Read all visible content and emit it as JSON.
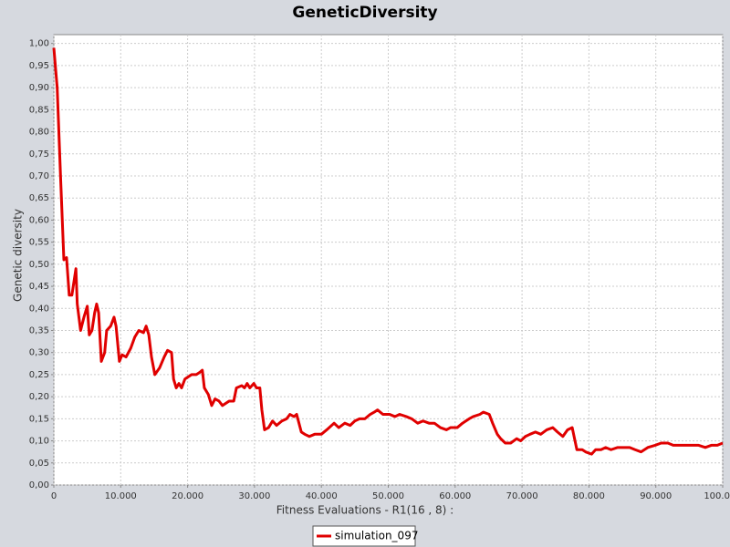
{
  "chart_data": {
    "type": "line",
    "title": "GeneticDiversity",
    "xlabel": "Fitness Evaluations - R1(16 , 8) :",
    "ylabel": "Genetic diversity",
    "x": [
      0,
      500,
      1000,
      1500,
      1900,
      2300,
      2700,
      3300,
      3500,
      4000,
      4500,
      5000,
      5300,
      5700,
      6100,
      6400,
      6700,
      7100,
      7600,
      7900,
      8500,
      9000,
      9300,
      9800,
      10200,
      10800,
      11500,
      12100,
      12700,
      13400,
      13800,
      14200,
      14600,
      15100,
      15800,
      16500,
      17000,
      17600,
      17900,
      18300,
      18700,
      19100,
      19600,
      20600,
      21300,
      21800,
      22200,
      22500,
      23100,
      23600,
      24100,
      24700,
      25200,
      26200,
      26900,
      27300,
      28100,
      28500,
      28900,
      29300,
      29900,
      30300,
      30800,
      31100,
      31500,
      32100,
      32700,
      33300,
      34100,
      34800,
      35300,
      35900,
      36300,
      37000,
      37500,
      38200,
      39000,
      40000,
      40800,
      41900,
      42600,
      43500,
      44300,
      45000,
      45700,
      46500,
      47300,
      47900,
      48400,
      49200,
      50200,
      51000,
      51700,
      52700,
      53500,
      54400,
      55200,
      56100,
      56900,
      57800,
      58700,
      59300,
      60300,
      61100,
      62100,
      62700,
      63700,
      64200,
      65100,
      65600,
      66300,
      66800,
      67500,
      68300,
      69200,
      69800,
      70500,
      71200,
      72000,
      72800,
      73700,
      74600,
      75300,
      76100,
      76800,
      77500,
      78200,
      79000,
      79500,
      80400,
      81000,
      81800,
      82500,
      83300,
      84300,
      85300,
      86100,
      86900,
      87800,
      88800,
      89900,
      90800,
      91800,
      92600,
      93400,
      94500,
      95300,
      96400,
      97400,
      98300,
      99200,
      100000
    ],
    "series": [
      {
        "name": "simulation_097",
        "color": "#e00000",
        "values": [
          0.99,
          0.9,
          0.7,
          0.51,
          0.515,
          0.43,
          0.43,
          0.49,
          0.41,
          0.35,
          0.38,
          0.405,
          0.34,
          0.35,
          0.39,
          0.41,
          0.39,
          0.28,
          0.3,
          0.35,
          0.36,
          0.38,
          0.36,
          0.28,
          0.295,
          0.29,
          0.31,
          0.335,
          0.35,
          0.345,
          0.36,
          0.34,
          0.29,
          0.25,
          0.265,
          0.29,
          0.305,
          0.3,
          0.24,
          0.22,
          0.23,
          0.22,
          0.24,
          0.25,
          0.25,
          0.255,
          0.26,
          0.22,
          0.205,
          0.18,
          0.195,
          0.19,
          0.18,
          0.19,
          0.19,
          0.22,
          0.225,
          0.22,
          0.23,
          0.22,
          0.23,
          0.22,
          0.22,
          0.17,
          0.125,
          0.13,
          0.145,
          0.135,
          0.145,
          0.15,
          0.16,
          0.155,
          0.16,
          0.12,
          0.115,
          0.11,
          0.115,
          0.115,
          0.125,
          0.14,
          0.13,
          0.14,
          0.135,
          0.145,
          0.15,
          0.15,
          0.16,
          0.165,
          0.17,
          0.16,
          0.16,
          0.155,
          0.16,
          0.155,
          0.15,
          0.14,
          0.145,
          0.14,
          0.14,
          0.13,
          0.125,
          0.13,
          0.13,
          0.14,
          0.15,
          0.155,
          0.16,
          0.165,
          0.16,
          0.14,
          0.115,
          0.105,
          0.095,
          0.095,
          0.105,
          0.1,
          0.11,
          0.115,
          0.12,
          0.115,
          0.125,
          0.13,
          0.12,
          0.11,
          0.125,
          0.13,
          0.08,
          0.08,
          0.075,
          0.07,
          0.08,
          0.08,
          0.085,
          0.08,
          0.085,
          0.085,
          0.085,
          0.08,
          0.075,
          0.085,
          0.09,
          0.095,
          0.095,
          0.09,
          0.09,
          0.09,
          0.09,
          0.09,
          0.085,
          0.09,
          0.09,
          0.095
        ]
      }
    ],
    "xlim": [
      0,
      100000
    ],
    "xticks": [
      0,
      {
        "value": 10000,
        "label": "10.000"
      },
      {
        "value": 20000,
        "label": "20.000"
      },
      {
        "value": 30000,
        "label": "30.000"
      },
      {
        "value": 40000,
        "label": "40.000"
      },
      {
        "value": 50000,
        "label": "50.000"
      },
      {
        "value": 60000,
        "label": "60.000"
      },
      {
        "value": 70000,
        "label": "70.000"
      },
      {
        "value": 80000,
        "label": "80.000"
      },
      {
        "value": 90000,
        "label": "90.000"
      },
      {
        "value": 100000,
        "label": "100.000"
      }
    ],
    "ylim": [
      0,
      1.02
    ],
    "yticks": [
      {
        "value": 0,
        "label": "0,00"
      },
      {
        "value": 0.05,
        "label": "0,05"
      },
      {
        "value": 0.1,
        "label": "0,10"
      },
      {
        "value": 0.15,
        "label": "0,15"
      },
      {
        "value": 0.2,
        "label": "0,20"
      },
      {
        "value": 0.25,
        "label": "0,25"
      },
      {
        "value": 0.3,
        "label": "0,30"
      },
      {
        "value": 0.35,
        "label": "0,35"
      },
      {
        "value": 0.4,
        "label": "0,40"
      },
      {
        "value": 0.45,
        "label": "0,45"
      },
      {
        "value": 0.5,
        "label": "0,50"
      },
      {
        "value": 0.55,
        "label": "0,55"
      },
      {
        "value": 0.6,
        "label": "0,60"
      },
      {
        "value": 0.65,
        "label": "0,65"
      },
      {
        "value": 0.7,
        "label": "0,70"
      },
      {
        "value": 0.75,
        "label": "0,75"
      },
      {
        "value": 0.8,
        "label": "0,80"
      },
      {
        "value": 0.85,
        "label": "0,85"
      },
      {
        "value": 0.9,
        "label": "0,90"
      },
      {
        "value": 0.95,
        "label": "0,95"
      },
      {
        "value": 1.0,
        "label": "1,00"
      }
    ],
    "grid": true,
    "legend": "bottom"
  }
}
